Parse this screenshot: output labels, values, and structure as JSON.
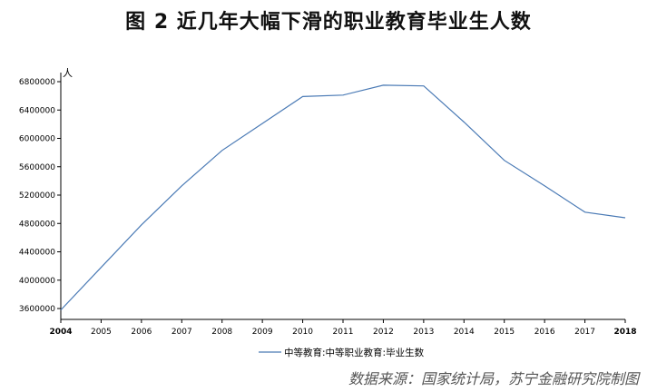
{
  "chart_data": {
    "type": "line",
    "title": "图 2  近几年大幅下滑的职业教育毕业生人数",
    "unit_label": "人",
    "x": [
      "2004",
      "2005",
      "2006",
      "2007",
      "2008",
      "2009",
      "2010",
      "2011",
      "2012",
      "2013",
      "2014",
      "2015",
      "2016",
      "2017",
      "2018"
    ],
    "series": [
      {
        "name": "中等教育:中等职业教育:毕业生数",
        "values": [
          3580000,
          4180000,
          4780000,
          5330000,
          5830000,
          6210000,
          6590000,
          6610000,
          6750000,
          6740000,
          6230000,
          5690000,
          5330000,
          4960000,
          4880000
        ]
      }
    ],
    "yticks": [
      3600000,
      4000000,
      4400000,
      4800000,
      5200000,
      5600000,
      6000000,
      6400000,
      6800000
    ],
    "ylim": [
      3600000,
      6800000
    ],
    "grid": false,
    "legend": "bottom",
    "color": "#4a7ab5"
  },
  "source": "数据来源：国家统计局，苏宁金融研究院制图"
}
